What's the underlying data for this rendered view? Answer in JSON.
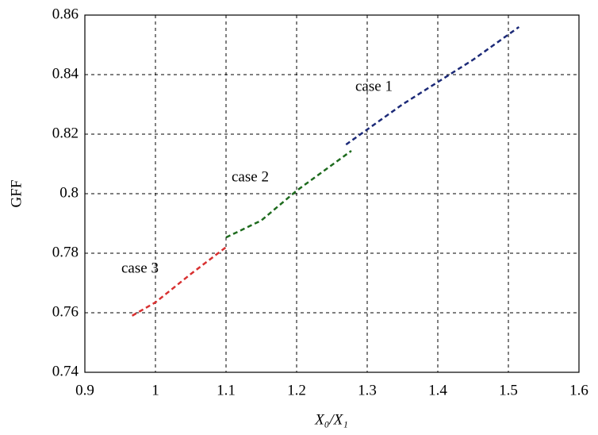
{
  "chart_data": {
    "type": "line",
    "xlabel": "X₀/X₁",
    "ylabel": "GFF",
    "xlim": [
      0.9,
      1.6
    ],
    "xticks": [
      0.9,
      1,
      1.1,
      1.2,
      1.3,
      1.4,
      1.5,
      1.6
    ],
    "ylim": [
      0.74,
      0.86
    ],
    "yticks": [
      0.74,
      0.76,
      0.78,
      0.8,
      0.82,
      0.84,
      0.86
    ],
    "grid": true,
    "series": [
      {
        "name": "case 1",
        "color": "#1c2a78",
        "x": [
          1.27,
          1.35,
          1.45,
          1.515
        ],
        "values": [
          0.8165,
          0.83,
          0.845,
          0.856
        ]
      },
      {
        "name": "case 2",
        "color": "#1e6b1e",
        "x": [
          1.1,
          1.15,
          1.2,
          1.2775
        ],
        "values": [
          0.7853,
          0.791,
          0.801,
          0.8144
        ]
      },
      {
        "name": "case 3",
        "color": "#d83030",
        "x": [
          0.967,
          1.0,
          1.05,
          1.102
        ],
        "values": [
          0.759,
          0.7635,
          0.773,
          0.7824
        ]
      }
    ]
  }
}
